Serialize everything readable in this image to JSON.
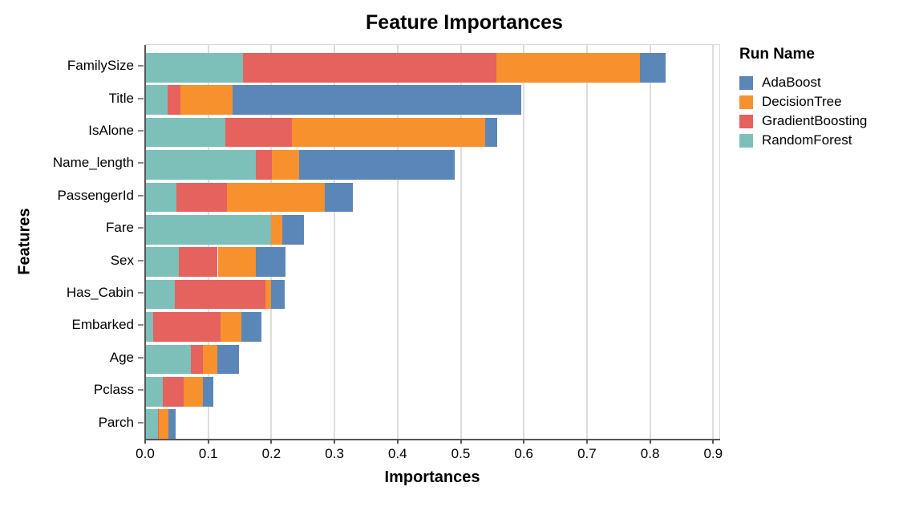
{
  "page": {
    "background": "#ffffff"
  },
  "chart_data": {
    "type": "bar",
    "orientation": "horizontal",
    "stacked": true,
    "grid": true,
    "title": "Feature Importances",
    "xlabel": "Importances",
    "ylabel": "Features",
    "xlim": [
      0,
      0.9
    ],
    "xticks": [
      "0.0",
      "0.1",
      "0.2",
      "0.3",
      "0.4",
      "0.5",
      "0.6",
      "0.7",
      "0.8",
      "0.9"
    ],
    "legend": {
      "title": "Run Name",
      "position": "right"
    },
    "categories": [
      "FamilySize",
      "Title",
      "IsAlone",
      "Name_length",
      "PassengerId",
      "Fare",
      "Sex",
      "Has_Cabin",
      "Embarked",
      "Age",
      "Pclass",
      "Parch"
    ],
    "series": [
      {
        "name": "AdaBoost",
        "color": "#5b86b8",
        "values": [
          0.041,
          0.457,
          0.019,
          0.246,
          0.044,
          0.035,
          0.048,
          0.021,
          0.031,
          0.035,
          0.017,
          0.011
        ]
      },
      {
        "name": "DecisionTree",
        "color": "#f6912e",
        "values": [
          0.227,
          0.083,
          0.307,
          0.043,
          0.155,
          0.018,
          0.06,
          0.01,
          0.033,
          0.023,
          0.03,
          0.015
        ]
      },
      {
        "name": "GradientBoosting",
        "color": "#e5625e",
        "values": [
          0.402,
          0.02,
          0.105,
          0.026,
          0.081,
          0.0,
          0.061,
          0.143,
          0.107,
          0.019,
          0.033,
          0.002
        ]
      },
      {
        "name": "RandomForest",
        "color": "#7cc0b9",
        "values": [
          0.155,
          0.036,
          0.127,
          0.175,
          0.049,
          0.199,
          0.054,
          0.047,
          0.013,
          0.072,
          0.028,
          0.02
        ]
      }
    ],
    "stack_order": [
      "RandomForest",
      "GradientBoosting",
      "DecisionTree",
      "AdaBoost"
    ],
    "totals": [
      0.825,
      0.596,
      0.558,
      0.49,
      0.329,
      0.252,
      0.223,
      0.221,
      0.184,
      0.149,
      0.108,
      0.048
    ],
    "style_colors": {
      "gridline": "#dddddd",
      "axis_domain": "#555555",
      "y_tick": "#888888"
    }
  }
}
